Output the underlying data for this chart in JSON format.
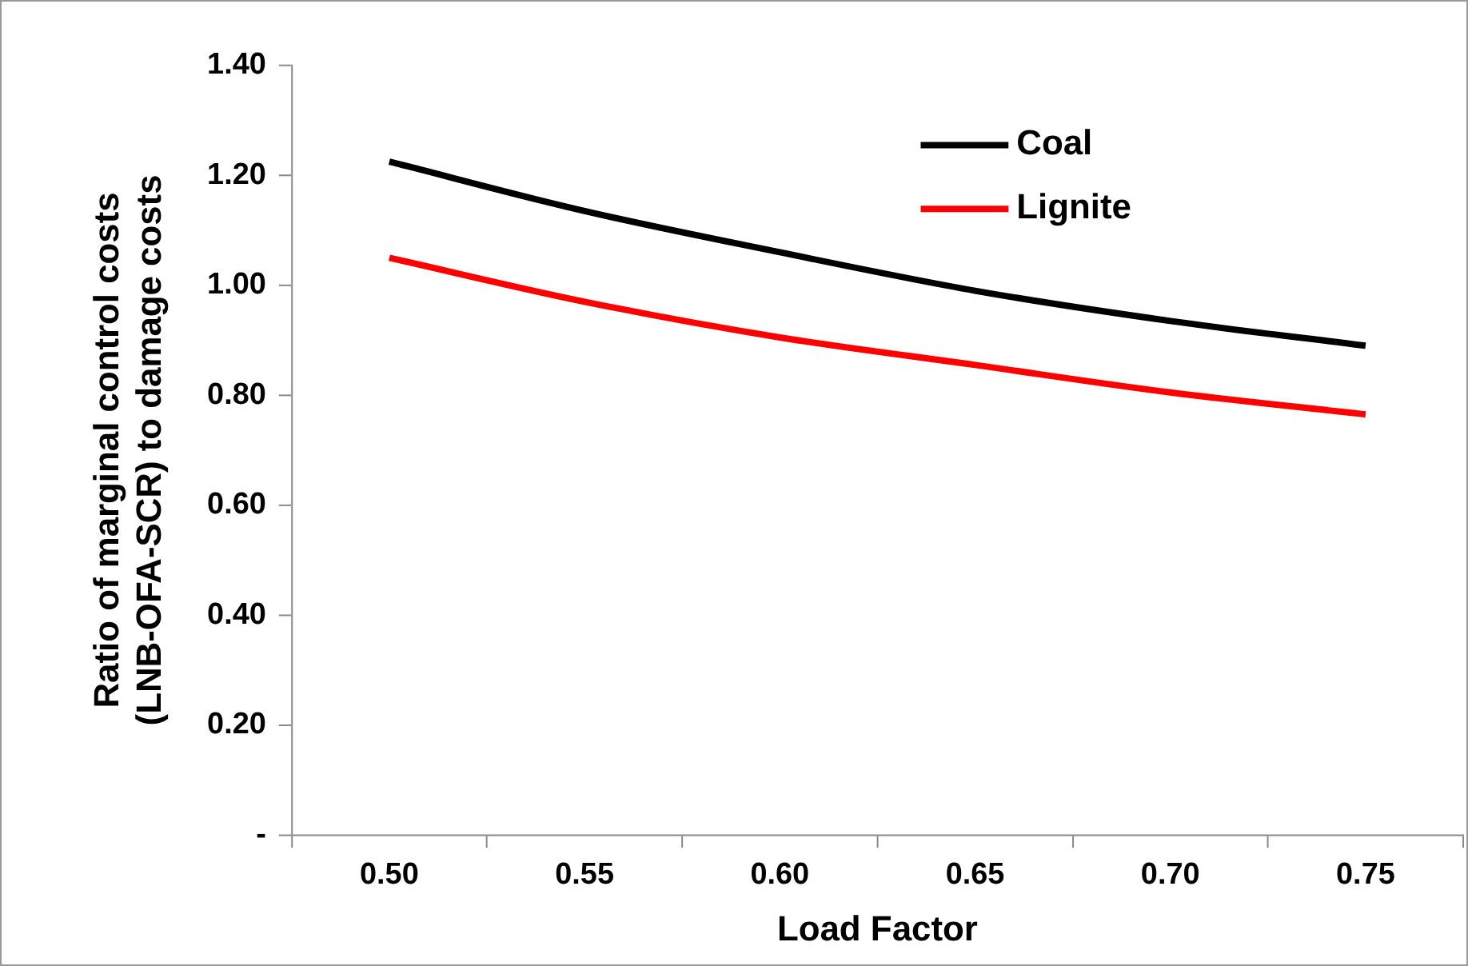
{
  "chart_data": {
    "type": "line",
    "xlabel": "Load Factor",
    "ylabel": "Ratio of marginal control costs\n(LNB-OFA-SCR) to damage costs",
    "categories": [
      "0.50",
      "0.55",
      "0.60",
      "0.65",
      "0.70",
      "0.75"
    ],
    "series": [
      {
        "name": "Coal",
        "color": "#000000",
        "values": [
          1.225,
          1.135,
          1.06,
          0.99,
          0.935,
          0.89
        ]
      },
      {
        "name": "Lignite",
        "color": "#ff0000",
        "values": [
          1.05,
          0.97,
          0.905,
          0.855,
          0.805,
          0.765
        ]
      }
    ],
    "ylim": [
      0,
      1.4
    ],
    "yticks": [
      {
        "value": 0,
        "label": "-"
      },
      {
        "value": 0.2,
        "label": "0.20"
      },
      {
        "value": 0.4,
        "label": "0.40"
      },
      {
        "value": 0.6,
        "label": "0.60"
      },
      {
        "value": 0.8,
        "label": "0.80"
      },
      {
        "value": 1.0,
        "label": "1.00"
      },
      {
        "value": 1.2,
        "label": "1.20"
      },
      {
        "value": 1.4,
        "label": "1.40"
      }
    ],
    "grid": false,
    "legend": "top right",
    "marker": "none",
    "line_style": "solid"
  }
}
